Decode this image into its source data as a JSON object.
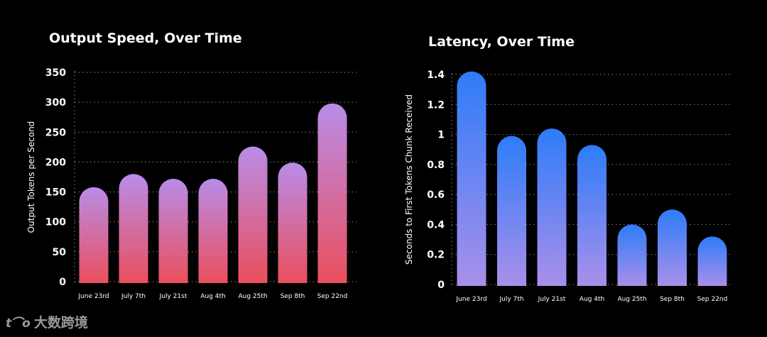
{
  "chart_data": [
    {
      "type": "bar",
      "title": "Output Speed, Over Time",
      "xlabel": "",
      "ylabel": "Output Tokens per Second",
      "categories": [
        "June 23rd",
        "July 7th",
        "July 21st",
        "Aug 4th",
        "Aug 25th",
        "Sep 8th",
        "Sep 22nd"
      ],
      "values": [
        158,
        180,
        172,
        172,
        226,
        199,
        298
      ],
      "ylim": [
        0,
        350
      ],
      "yticks": [
        "0",
        "50",
        "100",
        "150",
        "200",
        "250",
        "300",
        "350"
      ],
      "grid": "horizontal dotted",
      "legend": "none",
      "colors": {
        "top": "#b98ce8",
        "bottom": "#ea4f5d"
      }
    },
    {
      "type": "bar",
      "title": "Latency, Over Time",
      "xlabel": "",
      "ylabel": "Seconds to First Tokens Chunk Received",
      "categories": [
        "June 23rd",
        "July 7th",
        "July 21st",
        "Aug 4th",
        "Aug 25th",
        "Sep 8th",
        "Sep 22nd"
      ],
      "values": [
        1.42,
        0.99,
        1.04,
        0.93,
        0.4,
        0.5,
        0.32
      ],
      "ylim": [
        0,
        1.4
      ],
      "yticks": [
        "0",
        "0.2",
        "0.4",
        "0.6",
        "0.8",
        "1",
        "1.2",
        "1.4"
      ],
      "grid": "horizontal dotted",
      "legend": "none",
      "colors": {
        "top": "#2e7cf8",
        "bottom": "#a98fea"
      }
    }
  ],
  "watermark": {
    "text": "大数跨境"
  }
}
